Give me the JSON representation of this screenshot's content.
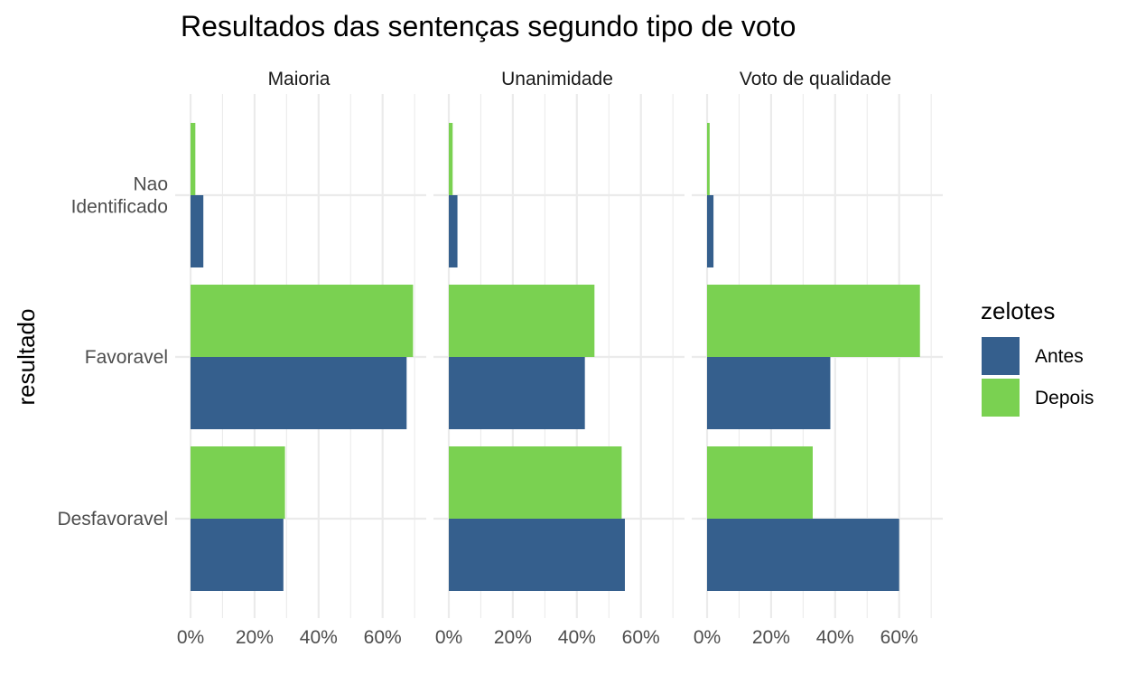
{
  "chart_data": {
    "type": "bar",
    "orientation": "horizontal",
    "title": "Resultados das sentenças segundo tipo de voto",
    "xlabel": "",
    "ylabel": "resultado",
    "categories": [
      "Desfavoravel",
      "Favoravel",
      "Nao Identificado"
    ],
    "category_labels": [
      [
        "Desfavoravel"
      ],
      [
        "Favoravel"
      ],
      [
        "Nao",
        "Identificado"
      ]
    ],
    "xlim": [
      0,
      0.7
    ],
    "x_ticks": [
      0,
      0.2,
      0.4,
      0.6
    ],
    "x_tick_labels": [
      "0%",
      "20%",
      "40%",
      "60%"
    ],
    "grid": true,
    "legend": {
      "title": "zelotes",
      "position": "right",
      "entries": [
        {
          "label": "Antes",
          "color": "#355f8d"
        },
        {
          "label": "Depois",
          "color": "#7ad151"
        }
      ]
    },
    "facets": [
      {
        "name": "Maioria",
        "series": [
          {
            "name": "Antes",
            "values": [
              0.29,
              0.675,
              0.04
            ]
          },
          {
            "name": "Depois",
            "values": [
              0.295,
              0.695,
              0.015
            ]
          }
        ]
      },
      {
        "name": "Unanimidade",
        "series": [
          {
            "name": "Antes",
            "values": [
              0.55,
              0.425,
              0.027
            ]
          },
          {
            "name": "Depois",
            "values": [
              0.54,
              0.455,
              0.012
            ]
          }
        ]
      },
      {
        "name": "Voto de qualidade",
        "series": [
          {
            "name": "Antes",
            "values": [
              0.6,
              0.385,
              0.02
            ]
          },
          {
            "name": "Depois",
            "values": [
              0.33,
              0.665,
              0.008
            ]
          }
        ]
      }
    ]
  }
}
